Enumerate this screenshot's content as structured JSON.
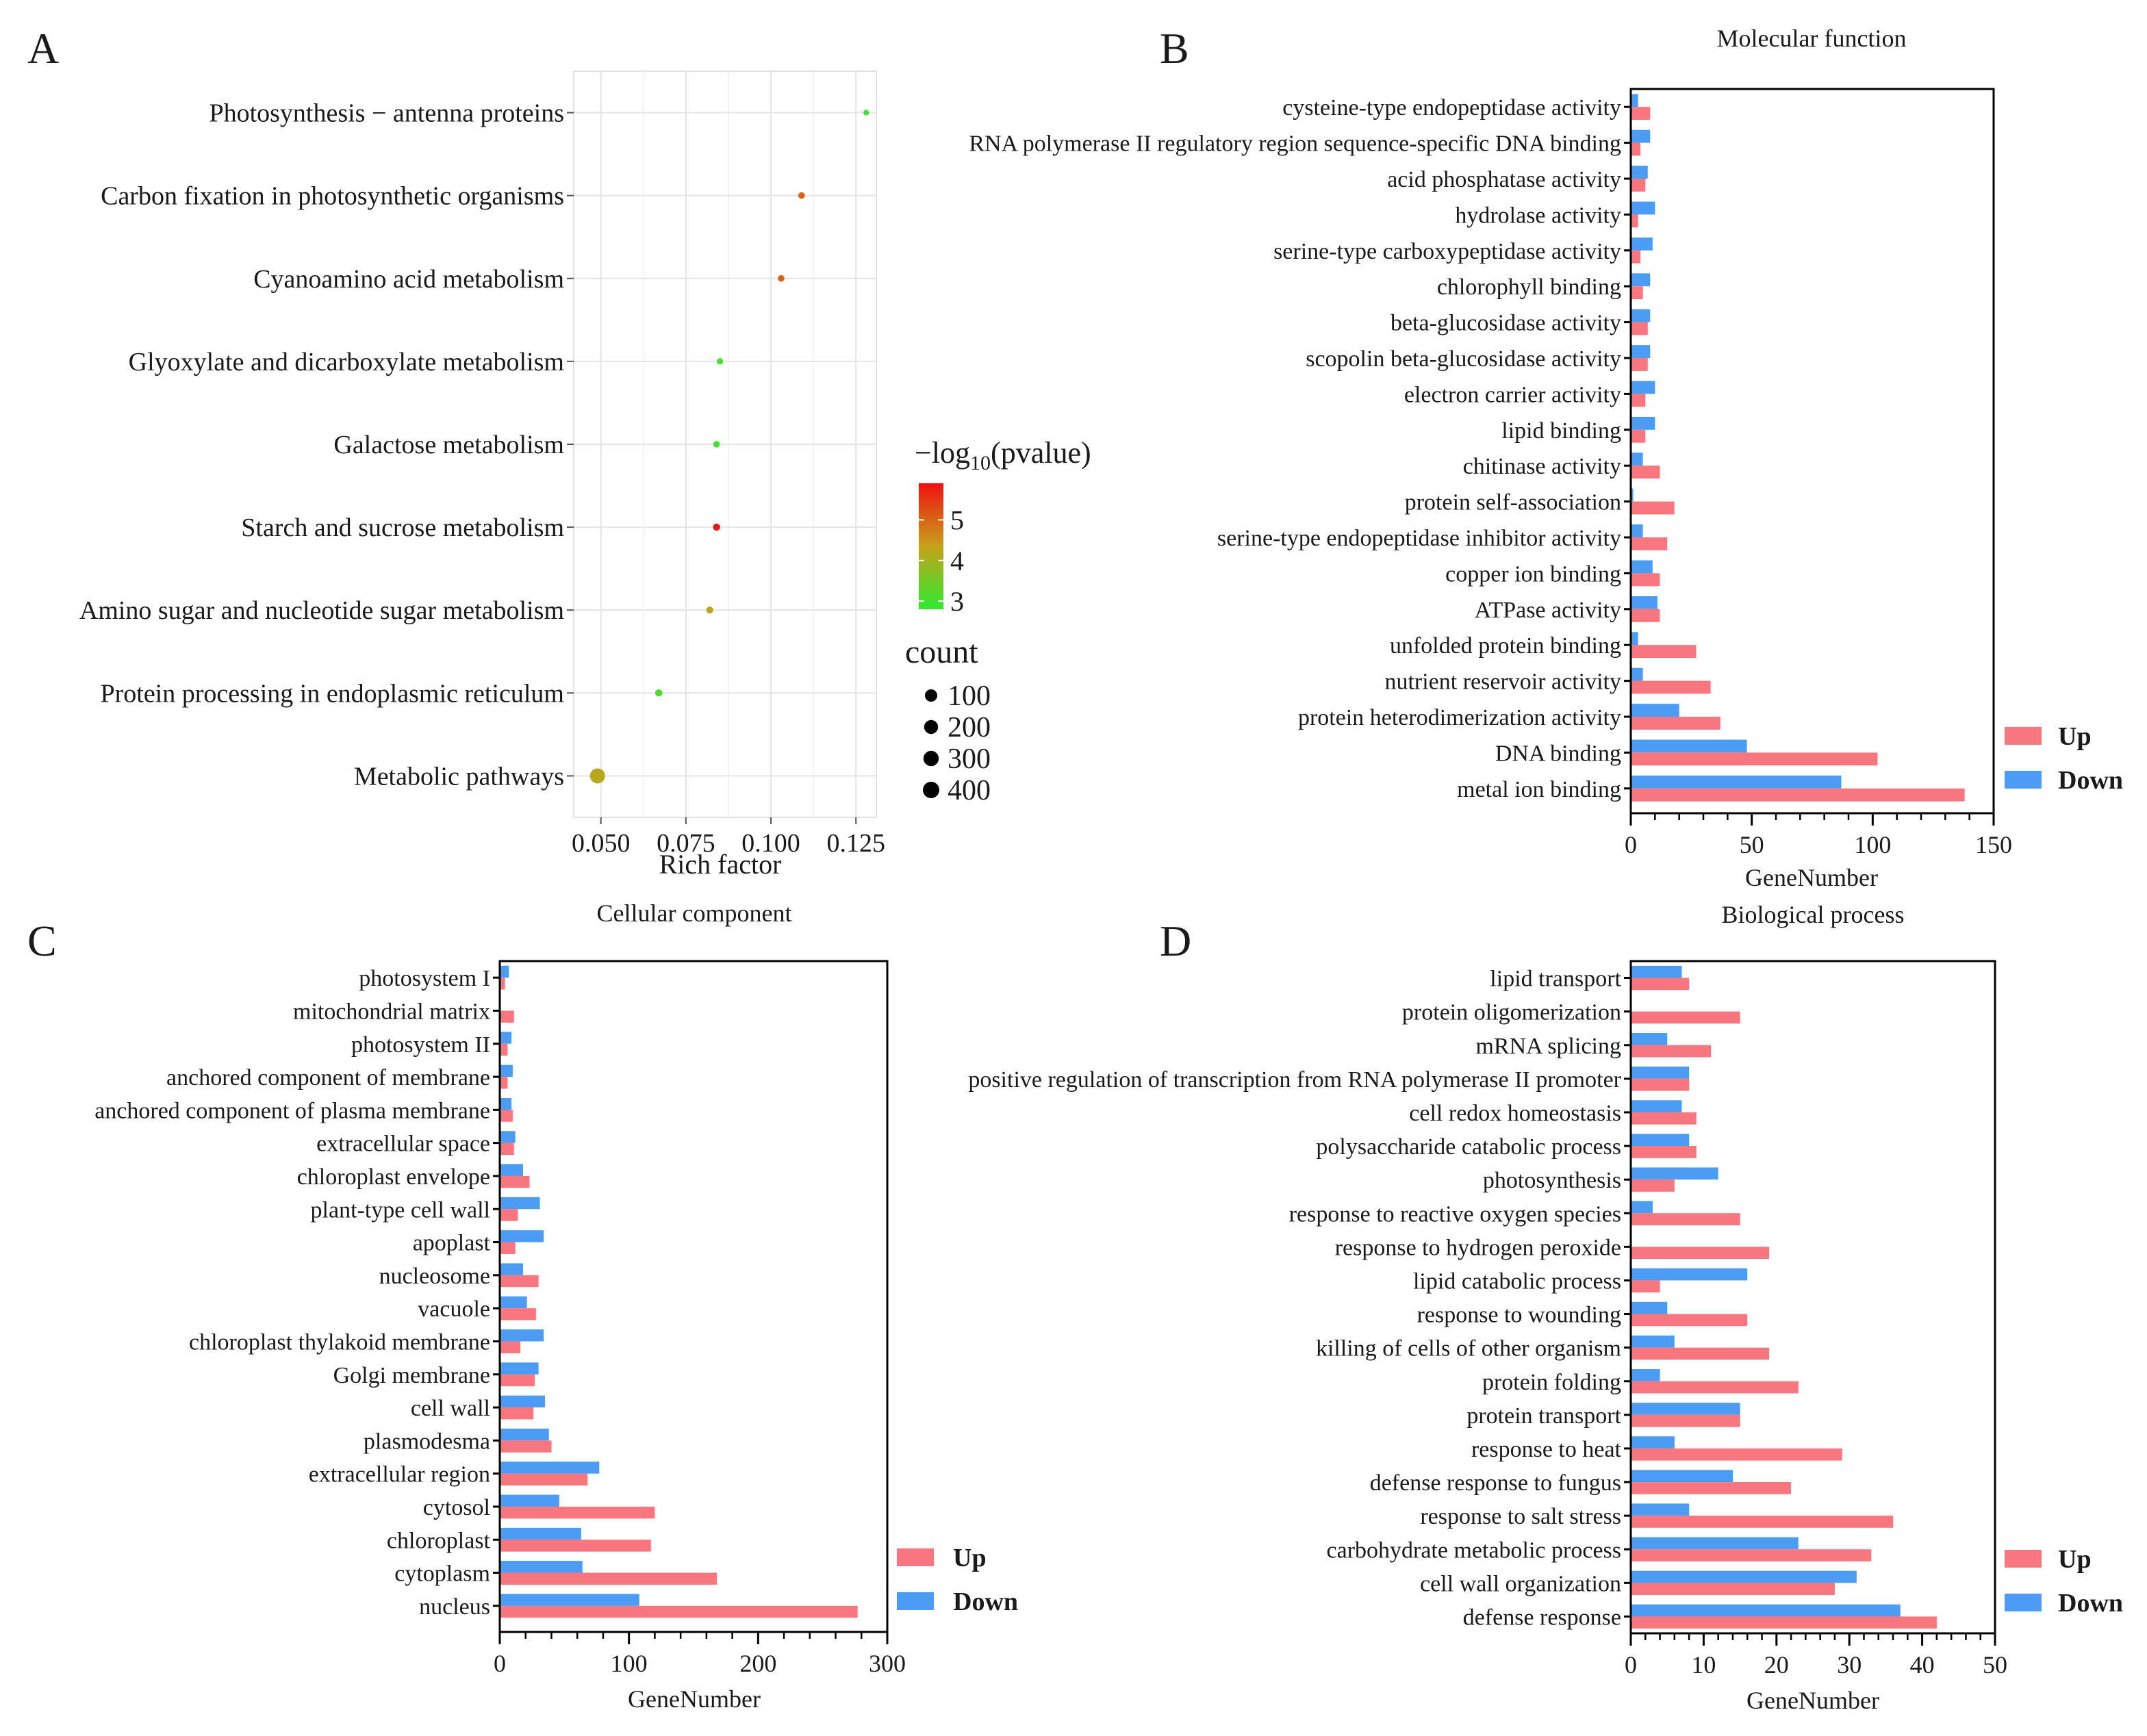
{
  "colors": {
    "up": "#F8767D",
    "down": "#4B9CF2",
    "grid": "#e4e4e4",
    "gradient_low": "#2EEB2E",
    "gradient_mid": "#C6A21C",
    "gradient_high": "#F01010"
  },
  "chart_data": [
    {
      "id": "A",
      "panel_label": "A",
      "type": "scatter",
      "title": "",
      "xlabel": "Rich factor",
      "ylabel": "",
      "xlim": [
        0.042,
        0.131
      ],
      "x_ticks": [
        0.05,
        0.075,
        0.1,
        0.125
      ],
      "x_tick_labels": [
        "0.050",
        "0.075",
        "0.100",
        "0.125"
      ],
      "categories": [
        "Photosynthesis − antenna proteins",
        "Carbon fixation in photosynthetic organisms",
        "Cyanoamino acid metabolism",
        "Glyoxylate and dicarboxylate metabolism",
        "Galactose metabolism",
        "Starch and sucrose metabolism",
        "Amino sugar and nucleotide sugar metabolism",
        "Protein processing in endoplasmic reticulum",
        "Metabolic pathways"
      ],
      "rich_factor": [
        0.128,
        0.109,
        0.103,
        0.085,
        0.084,
        0.084,
        0.082,
        0.067,
        0.049
      ],
      "neg_log10_pvalue": [
        2.9,
        5.0,
        5.0,
        3.0,
        3.0,
        5.8,
        4.3,
        3.1,
        4.2
      ],
      "count": [
        8,
        25,
        25,
        20,
        22,
        38,
        35,
        38,
        490
      ],
      "color_legend": {
        "title_prefix": "−log",
        "title_sub": "10",
        "title_suffix": "(pvalue)",
        "range": [
          2.8,
          5.9
        ],
        "ticks": [
          "5",
          "4",
          "3"
        ],
        "tick_values": [
          5,
          4,
          3
        ]
      },
      "size_legend": {
        "title": "count",
        "labels": [
          "100",
          "200",
          "300",
          "400"
        ],
        "values": [
          100,
          200,
          300,
          400
        ]
      }
    },
    {
      "id": "B",
      "panel_label": "B",
      "type": "bar",
      "title": "Molecular function",
      "xlabel": "GeneNumber",
      "ylabel": "",
      "xlim": [
        0,
        150
      ],
      "x_ticks": [
        0,
        50,
        100,
        150
      ],
      "x_tick_labels": [
        "0",
        "50",
        "100",
        "150"
      ],
      "minor_step": 10,
      "categories": [
        "cysteine-type endopeptidase activity",
        "RNA polymerase II regulatory region sequence-specific DNA binding",
        "acid phosphatase activity",
        "hydrolase activity",
        "serine-type carboxypeptidase activity",
        "chlorophyll binding",
        "beta-glucosidase activity",
        "scopolin beta-glucosidase activity",
        "electron carrier activity",
        "lipid binding",
        "chitinase activity",
        "protein self-association",
        "serine-type endopeptidase inhibitor activity",
        "copper ion binding",
        "ATPase activity",
        "unfolded protein binding",
        "nutrient reservoir activity",
        "protein heterodimerization activity",
        "DNA binding",
        "metal ion binding"
      ],
      "series": [
        {
          "name": "Up",
          "values": [
            8,
            4,
            6,
            3,
            4,
            5,
            7,
            7,
            6,
            6,
            12,
            18,
            15,
            12,
            12,
            27,
            33,
            37,
            102,
            138
          ]
        },
        {
          "name": "Down",
          "values": [
            3,
            8,
            7,
            10,
            9,
            8,
            8,
            8,
            10,
            10,
            5,
            1,
            5,
            9,
            11,
            3,
            5,
            20,
            48,
            87
          ]
        }
      ],
      "legend": [
        "Up",
        "Down"
      ]
    },
    {
      "id": "C",
      "panel_label": "C",
      "type": "bar",
      "title": "Cellular component",
      "xlabel": "GeneNumber",
      "ylabel": "",
      "xlim": [
        0,
        300
      ],
      "x_ticks": [
        0,
        100,
        200,
        300
      ],
      "x_tick_labels": [
        "0",
        "100",
        "200",
        "300"
      ],
      "minor_step": 20,
      "categories": [
        "photosystem I",
        "mitochondrial matrix",
        "photosystem II",
        "anchored component of membrane",
        "anchored component of plasma membrane",
        "extracellular space",
        "chloroplast envelope",
        "plant-type cell wall",
        "apoplast",
        "nucleosome",
        "vacuole",
        "chloroplast thylakoid membrane",
        "Golgi membrane",
        "cell wall",
        "plasmodesma",
        "extracellular region",
        "cytosol",
        "chloroplast",
        "cytoplasm",
        "nucleus"
      ],
      "series": [
        {
          "name": "Up",
          "values": [
            4,
            11,
            6,
            6,
            10,
            11,
            23,
            14,
            12,
            30,
            28,
            16,
            27,
            26,
            40,
            68,
            120,
            117,
            168,
            277
          ]
        },
        {
          "name": "Down",
          "values": [
            7,
            0,
            9,
            10,
            9,
            12,
            18,
            31,
            34,
            18,
            21,
            34,
            30,
            35,
            38,
            77,
            46,
            63,
            64,
            108
          ]
        }
      ],
      "legend": [
        "Up",
        "Down"
      ]
    },
    {
      "id": "D",
      "panel_label": "D",
      "type": "bar",
      "title": "Biological process",
      "xlabel": "GeneNumber",
      "ylabel": "",
      "xlim": [
        0,
        50
      ],
      "x_ticks": [
        0,
        10,
        20,
        30,
        40,
        50
      ],
      "x_tick_labels": [
        "0",
        "10",
        "20",
        "30",
        "40",
        "50"
      ],
      "minor_step": 2,
      "categories": [
        "lipid transport",
        "protein oligomerization",
        "mRNA splicing",
        "positive regulation of transcription from RNA polymerase II promoter",
        "cell redox homeostasis",
        "polysaccharide catabolic process",
        "photosynthesis",
        "response to reactive oxygen species",
        "response to hydrogen peroxide",
        "lipid catabolic process",
        "response to wounding",
        "killing of cells of other organism",
        "protein folding",
        "protein transport",
        "response to heat",
        "defense response to fungus",
        "response to salt stress",
        "carbohydrate metabolic process",
        "cell wall organization",
        "defense response"
      ],
      "series": [
        {
          "name": "Up",
          "values": [
            8,
            15,
            11,
            8,
            9,
            9,
            6,
            15,
            19,
            4,
            16,
            19,
            23,
            15,
            29,
            22,
            36,
            33,
            28,
            42
          ]
        },
        {
          "name": "Down",
          "values": [
            7,
            0,
            5,
            8,
            7,
            8,
            12,
            3,
            0,
            16,
            5,
            6,
            4,
            15,
            6,
            14,
            8,
            23,
            31,
            37
          ]
        }
      ],
      "legend": [
        "Up",
        "Down"
      ]
    }
  ]
}
